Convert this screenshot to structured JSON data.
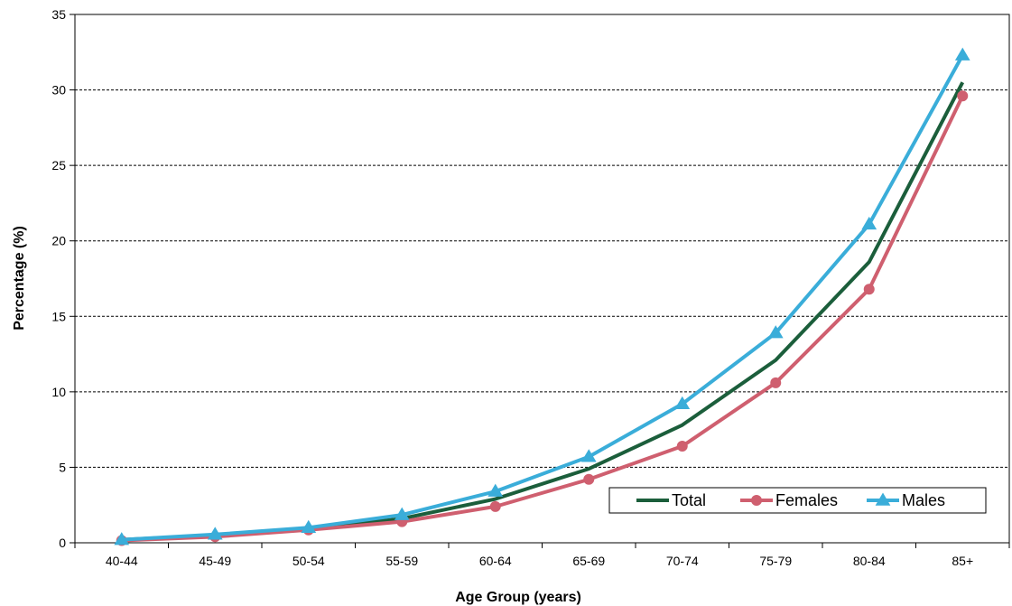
{
  "chart_data": {
    "type": "line",
    "title": "",
    "xlabel": "Age Group (years)",
    "ylabel": "Percentage (%)",
    "categories": [
      "40-44",
      "45-49",
      "50-54",
      "55-59",
      "60-64",
      "65-69",
      "70-74",
      "75-79",
      "80-84",
      "85+"
    ],
    "ylim": [
      0,
      35
    ],
    "yticks": [
      "0",
      "5",
      "10",
      "15",
      "20",
      "25",
      "30",
      "35"
    ],
    "grid": "horizontal dashed",
    "legend_position": "bottom-right",
    "series": [
      {
        "name": "Total",
        "color": "#1b5e3b",
        "marker": "none",
        "values": [
          0.2,
          0.5,
          0.9,
          1.6,
          2.9,
          4.9,
          7.8,
          12.1,
          18.6,
          30.5
        ]
      },
      {
        "name": "Females",
        "color": "#cf5f6f",
        "marker": "circle",
        "values": [
          0.15,
          0.4,
          0.85,
          1.4,
          2.4,
          4.2,
          6.4,
          10.6,
          16.8,
          29.6
        ]
      },
      {
        "name": "Males",
        "color": "#3aadd9",
        "marker": "triangle",
        "values": [
          0.2,
          0.55,
          1.0,
          1.85,
          3.4,
          5.7,
          9.2,
          13.9,
          21.1,
          32.3
        ]
      }
    ]
  }
}
